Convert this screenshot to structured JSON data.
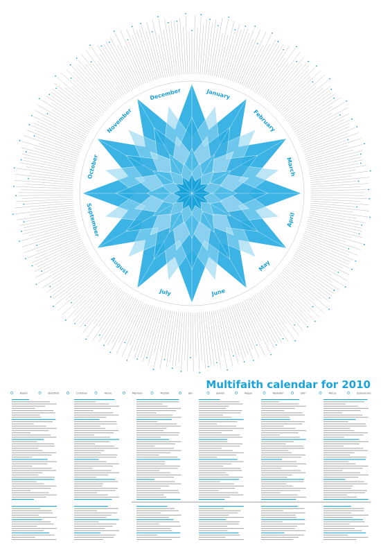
{
  "title": "Multifaith calendar for 2010",
  "months": [
    "January",
    "February",
    "March",
    "April",
    "May",
    "June",
    "July",
    "August",
    "September",
    "October",
    "November",
    "December"
  ],
  "legend": [
    "Bahá'í",
    "Buddhist",
    "Christian",
    "Hindu",
    "Mormon",
    "Muslim",
    "Jain",
    "Jewish",
    "Pagan",
    "Rastafari",
    "Sikh",
    "Wicca",
    "Zoroastrian"
  ]
}
